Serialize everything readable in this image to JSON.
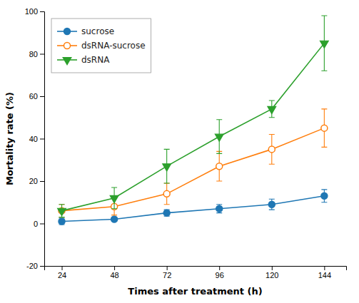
{
  "chart_data": {
    "type": "line",
    "xlabel": "Times after treatment (h)",
    "ylabel": "Mortality rate (%)",
    "x": [
      24,
      48,
      72,
      96,
      120,
      144
    ],
    "xlim": [
      16,
      154
    ],
    "xticks": [
      24,
      48,
      72,
      96,
      120,
      144
    ],
    "ylim": [
      -20,
      100
    ],
    "yticks": [
      -20,
      0,
      20,
      40,
      60,
      80,
      100
    ],
    "legend": "upper-left",
    "series": [
      {
        "name": "sucrose",
        "marker": "circle",
        "line_style": "solid",
        "values": [
          1.0,
          2.0,
          5.0,
          7.0,
          9.0,
          13.0
        ],
        "errors": [
          1.5,
          1.0,
          1.5,
          2.0,
          2.5,
          3.0
        ]
      },
      {
        "name": "dsRNA-sucrose",
        "marker": "circle-open",
        "line_style": "solid",
        "values": [
          6.0,
          8.0,
          14.0,
          27.0,
          35.0,
          45.0
        ],
        "errors": [
          3.0,
          4.0,
          5.0,
          7.0,
          7.0,
          9.0
        ]
      },
      {
        "name": "dsRNA",
        "marker": "triangle-down",
        "line_style": "solid",
        "values": [
          6.0,
          12.0,
          27.0,
          41.0,
          54.0,
          85.0
        ],
        "errors": [
          3.0,
          5.0,
          8.0,
          8.0,
          4.0,
          13.0
        ]
      }
    ]
  }
}
